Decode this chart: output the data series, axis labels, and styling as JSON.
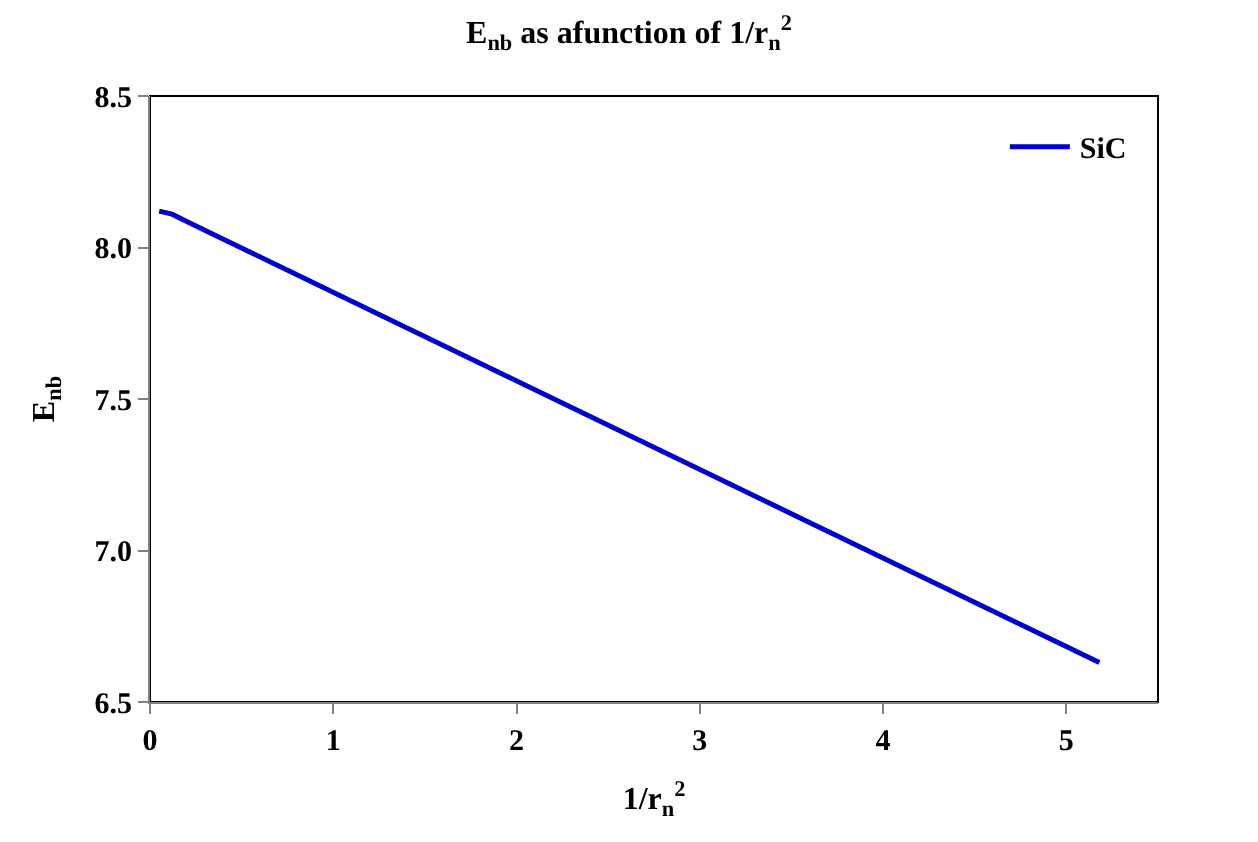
{
  "chart_data": {
    "type": "line",
    "title": "E$_{nb}$ as afunction of 1/r$_{n}$$^{2}$",
    "xlabel": "1/r$_{n}$$^{2}$",
    "ylabel": "E$_{nb}$",
    "x": [
      0.05,
      0.12,
      0.22,
      5.18
    ],
    "series": [
      {
        "name": "SiC",
        "color": "#0000cc",
        "values": [
          8.12,
          8.11,
          8.08,
          6.63
        ]
      }
    ],
    "xlim": [
      0,
      5.5
    ],
    "xticks": [
      0,
      1,
      2,
      3,
      4,
      5
    ],
    "ylim": [
      6.5,
      8.5
    ],
    "yticks": [
      {
        "value": 6.5,
        "label": "6.5"
      },
      {
        "value": 7,
        "label": "7.0"
      },
      {
        "value": 7.5,
        "label": "7.5"
      },
      {
        "value": 8,
        "label": "8.0"
      },
      {
        "value": 8.5,
        "label": "8.5"
      }
    ],
    "grid": false,
    "legend": "top right",
    "marker": "none",
    "line_style": "solid"
  }
}
